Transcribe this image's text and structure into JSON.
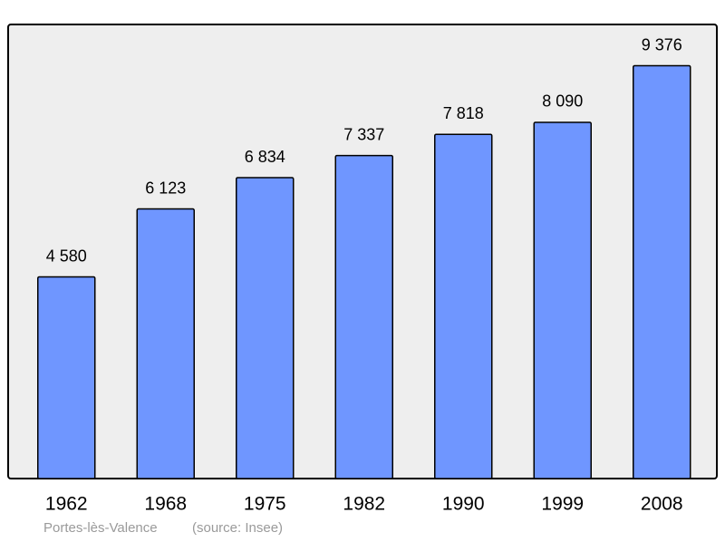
{
  "chart_data": {
    "type": "bar",
    "categories": [
      "1962",
      "1968",
      "1975",
      "1982",
      "1990",
      "1999",
      "2008"
    ],
    "values": [
      4580,
      6123,
      6834,
      7337,
      7818,
      8090,
      9376
    ],
    "value_labels": [
      "4 580",
      "6 123",
      "6 834",
      "7 337",
      "7 818",
      "8 090",
      "9 376"
    ],
    "color": "#6f96ff",
    "ylim": [
      0,
      10313
    ],
    "place": "Portes-lès-Valence",
    "source": "(source: Insee)"
  }
}
